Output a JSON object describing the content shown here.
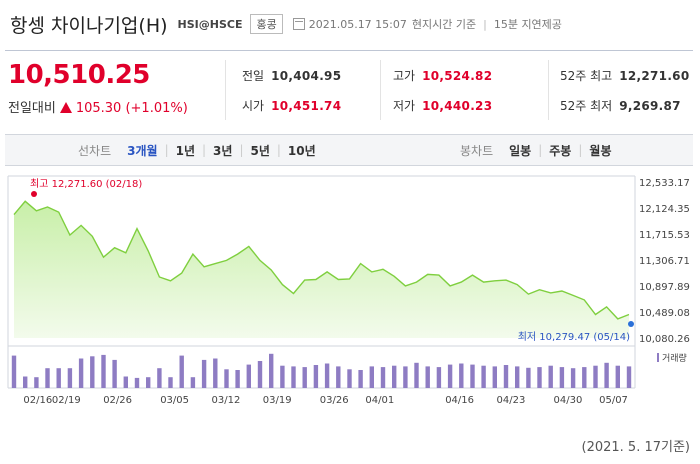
{
  "header": {
    "title": "항셍 차이나기업(H)",
    "code": "HSI@HSCE",
    "country": "홍콩",
    "datetime": "2021.05.17 15:07",
    "basis": "현지시간 기준",
    "delay": "15분 지연제공"
  },
  "quote": {
    "price": "10,510.25",
    "change_label": "전일대비",
    "change_value": "105.30 (+1.01%)"
  },
  "stats": {
    "prev_close": {
      "label": "전일",
      "value": "10,404.95"
    },
    "open": {
      "label": "시가",
      "value": "10,451.74"
    },
    "high": {
      "label": "고가",
      "value": "10,524.82"
    },
    "low": {
      "label": "저가",
      "value": "10,440.23"
    },
    "high52": {
      "label": "52주 최고",
      "value": "12,271.60"
    },
    "low52": {
      "label": "52주 최저",
      "value": "9,269.87"
    }
  },
  "tabs": {
    "line_label": "선차트",
    "line_periods": [
      "3개월",
      "1년",
      "3년",
      "5년",
      "10년"
    ],
    "active_period": 0,
    "candle_label": "봉차트",
    "candle_periods": [
      "일봉",
      "주봉",
      "월봉"
    ]
  },
  "colors": {
    "up": "#e0002b",
    "accent": "#2a55c2",
    "line": "#7fcf3f",
    "bar": "#8e7cc3"
  },
  "chart_data": {
    "type": "area",
    "y_ticks": [
      "12,533.17",
      "12,124.35",
      "11,715.53",
      "11,306.71",
      "10,897.89",
      "10,489.08",
      "10,080.26"
    ],
    "ylim": [
      10080.26,
      12533.17
    ],
    "x_ticks": [
      "02/16",
      "02/19",
      "02/26",
      "03/05",
      "03/12",
      "03/19",
      "03/26",
      "04/01",
      "04/16",
      "04/23",
      "04/30",
      "05/07"
    ],
    "values": [
      12020,
      12230,
      12080,
      12140,
      12060,
      11700,
      11850,
      11680,
      11350,
      11500,
      11420,
      11800,
      11450,
      11040,
      10980,
      11100,
      11400,
      11200,
      11250,
      11300,
      11400,
      11520,
      11300,
      11150,
      10920,
      10780,
      10990,
      11000,
      11120,
      11000,
      11010,
      11250,
      11120,
      11160,
      11050,
      10900,
      10960,
      11080,
      11070,
      10900,
      10960,
      11070,
      10960,
      10980,
      10990,
      10920,
      10770,
      10840,
      10790,
      10820,
      10750,
      10680,
      10450,
      10570,
      10380,
      10450
    ],
    "annotations": {
      "max": {
        "label": "최고",
        "value": "12,271.60 (02/18)"
      },
      "min": {
        "label": "최저",
        "value": "10,279.47 (05/14)"
      }
    },
    "volume_label": "거래량",
    "volume": [
      0.9,
      0.32,
      0.3,
      0.55,
      0.55,
      0.55,
      0.82,
      0.88,
      0.92,
      0.78,
      0.32,
      0.28,
      0.3,
      0.55,
      0.3,
      0.9,
      0.3,
      0.78,
      0.82,
      0.52,
      0.5,
      0.65,
      0.75,
      0.95,
      0.62,
      0.6,
      0.58,
      0.64,
      0.68,
      0.6,
      0.52,
      0.5,
      0.6,
      0.58,
      0.62,
      0.6,
      0.7,
      0.6,
      0.58,
      0.65,
      0.68,
      0.65,
      0.62,
      0.6,
      0.64,
      0.6,
      0.56,
      0.58,
      0.62,
      0.58,
      0.55,
      0.58,
      0.62,
      0.7,
      0.62,
      0.6
    ]
  },
  "footer": {
    "asof": "(2021. 5. 17기준)"
  }
}
